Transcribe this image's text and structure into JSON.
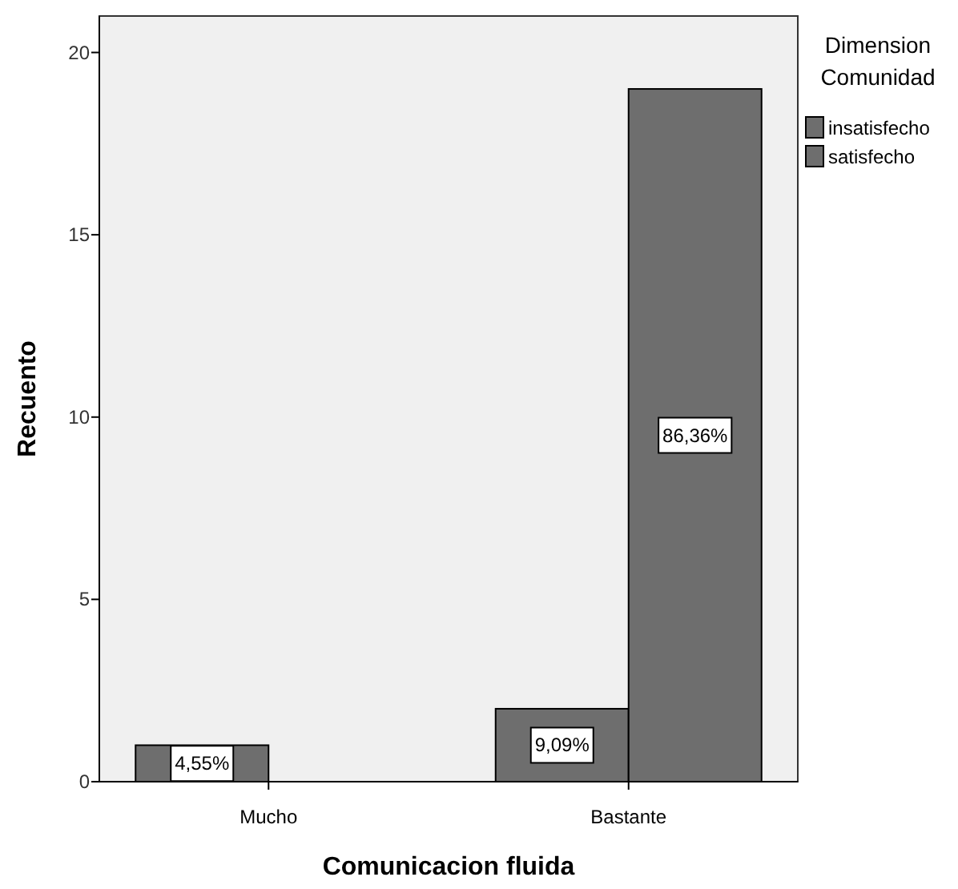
{
  "chart_data": {
    "type": "bar",
    "xlabel": "Comunicacion fluida",
    "ylabel": "Recuento",
    "legend_title": "Dimension Comunidad",
    "categories": [
      "Mucho",
      "Bastante"
    ],
    "series": [
      {
        "name": "insatisfecho",
        "color": "#6e6e6e",
        "values": [
          1,
          2
        ]
      },
      {
        "name": "satisfecho",
        "color": "#6e6e6e",
        "values": [
          null,
          19
        ]
      }
    ],
    "annotations": [
      {
        "text": "4,55%",
        "x": "Mucho",
        "y": 0.5
      },
      {
        "text": "9,09%",
        "x": "Bastante",
        "y": 1
      },
      {
        "text": "86,36%",
        "x": "Bastante",
        "y": 9.5
      }
    ],
    "ylim": [
      0,
      21
    ],
    "yticks": [
      0,
      5,
      10,
      15,
      20
    ],
    "grid": false,
    "legend": "right"
  }
}
